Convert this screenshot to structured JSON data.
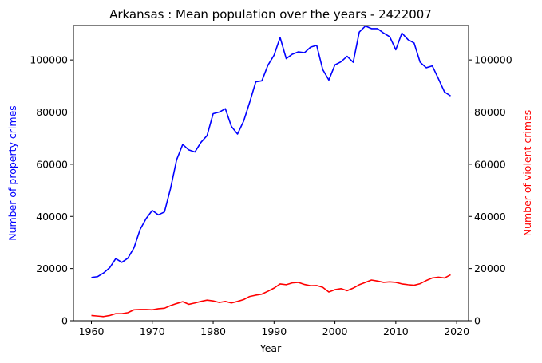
{
  "chart_data": {
    "type": "line",
    "title": "Arkansas : Mean population over the years - 2422007",
    "xlabel": "Year",
    "ylabel_left": "Number of property crimes",
    "ylabel_right": "Number of violent crimes",
    "xlim": [
      1957.05,
      2021.95
    ],
    "ylim_left": [
      0,
      113200
    ],
    "ylim_right": [
      0,
      113200
    ],
    "x_ticks": [
      1960,
      1970,
      1980,
      1990,
      2000,
      2010,
      2020
    ],
    "y_ticks": [
      0,
      20000,
      40000,
      60000,
      80000,
      100000
    ],
    "grid": false,
    "x": [
      1960,
      1961,
      1962,
      1963,
      1964,
      1965,
      1966,
      1967,
      1968,
      1969,
      1970,
      1971,
      1972,
      1973,
      1974,
      1975,
      1976,
      1977,
      1978,
      1979,
      1980,
      1981,
      1982,
      1983,
      1984,
      1985,
      1986,
      1987,
      1988,
      1989,
      1990,
      1991,
      1992,
      1993,
      1994,
      1995,
      1996,
      1997,
      1998,
      1999,
      2000,
      2001,
      2002,
      2003,
      2004,
      2005,
      2006,
      2007,
      2008,
      2009,
      2010,
      2011,
      2012,
      2013,
      2014,
      2015,
      2016,
      2017,
      2018,
      2019
    ],
    "series": [
      {
        "axis": "left",
        "color": "#0000ff",
        "values": [
          16600,
          16900,
          18300,
          20300,
          23800,
          22400,
          24000,
          28000,
          35000,
          39200,
          42300,
          40600,
          41700,
          50700,
          61700,
          67600,
          65500,
          64700,
          68400,
          71000,
          79400,
          80000,
          81300,
          74500,
          71600,
          76500,
          83800,
          91600,
          92000,
          98000,
          101800,
          108600,
          100500,
          102200,
          103100,
          102800,
          104900,
          105600,
          96300,
          92300,
          98100,
          99300,
          101400,
          99100,
          110700,
          113000,
          112000,
          112000,
          110300,
          108900,
          103900,
          110300,
          107800,
          106500,
          99100,
          97000,
          97700,
          92800,
          87700,
          86200
        ]
      },
      {
        "axis": "right",
        "color": "#ff0000",
        "values": [
          2000,
          1800,
          1600,
          2000,
          2700,
          2700,
          3100,
          4200,
          4300,
          4300,
          4200,
          4600,
          4800,
          5800,
          6600,
          7300,
          6300,
          6800,
          7400,
          7900,
          7600,
          7000,
          7400,
          6800,
          7400,
          8100,
          9300,
          9800,
          10200,
          11300,
          12500,
          14100,
          13800,
          14500,
          14700,
          13900,
          13400,
          13500,
          12800,
          11000,
          11900,
          12300,
          11500,
          12500,
          13800,
          14700,
          15600,
          15200,
          14700,
          14900,
          14700,
          14100,
          13800,
          13600,
          14200,
          15400,
          16400,
          16700,
          16400,
          17600
        ]
      }
    ]
  }
}
